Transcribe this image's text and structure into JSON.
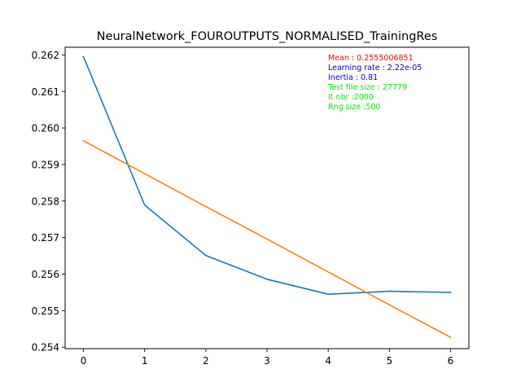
{
  "chart_data": {
    "type": "line",
    "title": "NeuralNetwork_FOUROUTPUTS_NORMALISED_TrainingRes",
    "xlabel": "",
    "ylabel": "",
    "x": [
      0,
      1,
      2,
      3,
      4,
      5,
      6
    ],
    "xlim": [
      -0.3,
      6.3
    ],
    "ylim": [
      0.25396,
      0.26221
    ],
    "xticks": [
      0,
      1,
      2,
      3,
      4,
      5,
      6
    ],
    "yticks": [
      0.254,
      0.255,
      0.256,
      0.257,
      0.258,
      0.259,
      0.26,
      0.261,
      0.262
    ],
    "ytick_labels": [
      "0.254",
      "0.255",
      "0.256",
      "0.257",
      "0.258",
      "0.259",
      "0.260",
      "0.261",
      "0.262"
    ],
    "grid": false,
    "series": [
      {
        "values": [
          0.26195,
          0.25789,
          0.25651,
          0.25586,
          0.25545,
          0.25553,
          0.2555
        ],
        "color": "#1f77b4"
      },
      {
        "values": [
          0.25965,
          0.25875,
          0.25785,
          0.25696,
          0.25606,
          0.25516,
          0.25427
        ],
        "color": "#ff7f0e"
      }
    ],
    "annotations": [
      {
        "text": "Mean : 0.2555006851",
        "color": "#ff0000"
      },
      {
        "text": "Learning rate : 2.22e-05",
        "color": "#0000cc"
      },
      {
        "text": "Inertia : 0.81",
        "color": "#0000cc"
      },
      {
        "text": "Test file size : 27779",
        "color": "#00ee00"
      },
      {
        "text": "It nbr :2000",
        "color": "#00ee00"
      },
      {
        "text": "Rng size :500",
        "color": "#00ee00"
      }
    ]
  }
}
